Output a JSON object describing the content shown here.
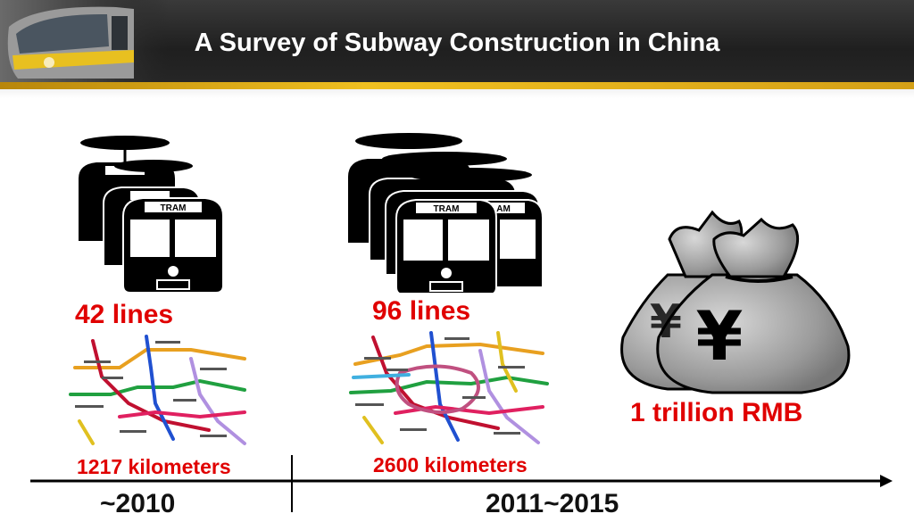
{
  "slide": {
    "title": "A Survey of Subway Construction in China",
    "colors": {
      "header": "#262626",
      "accent_gold": "#e0b020",
      "highlight_red": "#e00000"
    }
  },
  "period_2010": {
    "lines": "42 lines",
    "length": "1217 kilometers",
    "year": "~2010",
    "tram_label": "TRAM"
  },
  "period_2011_2015": {
    "lines": "96 lines",
    "length": "2600 kilometers",
    "year": "2011~2015",
    "tram_label": "TRAM",
    "tram_label_partial": "AM"
  },
  "investment": {
    "amount": "1 trillion RMB",
    "currency_symbol": "¥",
    "icon": "money-bag-icon"
  }
}
